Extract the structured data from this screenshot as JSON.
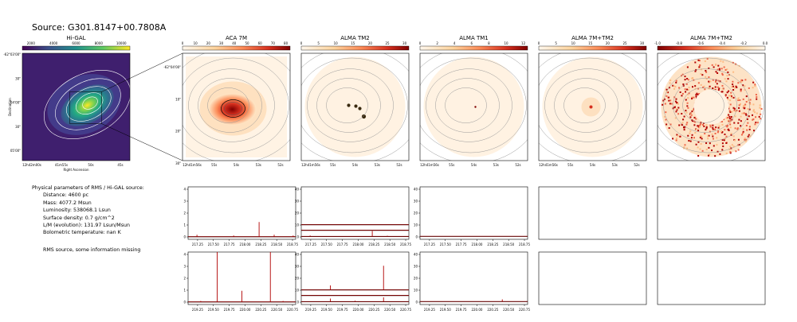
{
  "source_title": "Source: G301.8147+00.7808A",
  "info": {
    "heading": "Physical parameters of RMS / Hi-GAL source:",
    "distance": "Distance: 4600 pc",
    "mass": "Mass: 4077.2 Msun",
    "luminosity": "Luminosity: 538068.1 Lsun",
    "surface_density": "Surface density: 0.7 g/cm^2",
    "lm": "L/M (evolution): 131.97 Lsun/Msun",
    "tbol": "Bolometric temperature: nan K",
    "note": "RMS source, some information missing"
  },
  "chart_data": [
    {
      "type": "heatmap",
      "title": "Hi-GAL",
      "colormap": "viridis",
      "colorbar_ticks": [
        "2000",
        "4000",
        "6000",
        "8000",
        "10000"
      ],
      "xlabel": "Right Ascension",
      "ylabel": "Declination",
      "xticks": [
        "12h42m00s",
        "41m55s",
        "50s",
        "45s"
      ],
      "yticks": [
        "-62°03'00\"",
        "30\"",
        "04'00\"",
        "30\"",
        "05'00\""
      ]
    },
    {
      "type": "heatmap",
      "title": "ACA 7M",
      "colormap": "OrRd",
      "colorbar_ticks": [
        "0",
        "10",
        "20",
        "30",
        "40",
        "50",
        "60",
        "70",
        "80"
      ],
      "xticks": [
        "12h41m56s",
        "55s",
        "54s",
        "53s",
        "52s"
      ],
      "yticks": [
        "-62°04'00\"",
        "10\"",
        "20\"",
        "30\""
      ]
    },
    {
      "type": "heatmap",
      "title": "ALMA TM2",
      "colormap": "OrRd",
      "colorbar_ticks": [
        "0",
        "5",
        "10",
        "15",
        "20",
        "25",
        "30"
      ],
      "xticks": [
        "12h41m56s",
        "55s",
        "54s",
        "53s",
        "52s"
      ]
    },
    {
      "type": "heatmap",
      "title": "ALMA TM1",
      "colormap": "OrRd",
      "colorbar_ticks": [
        "0",
        "2",
        "4",
        "6",
        "8",
        "10",
        "12"
      ],
      "xticks": [
        "12h41m56s",
        "55s",
        "54s",
        "53s",
        "52s"
      ]
    },
    {
      "type": "heatmap",
      "title": "ALMA 7M+TM2",
      "colormap": "OrRd",
      "colorbar_ticks": [
        "0",
        "5",
        "10",
        "15",
        "20",
        "25",
        "30"
      ],
      "xticks": [
        "12h41m56s",
        "55s",
        "54s",
        "53s",
        "52s"
      ]
    },
    {
      "type": "heatmap",
      "title": "ALMA 7M+TM2",
      "colormap": "OrRd",
      "colorbar_ticks": [
        "-1.0",
        "-0.8",
        "-0.6",
        "-0.4",
        "-0.2",
        "0.0"
      ]
    },
    {
      "type": "line",
      "panel": "ACA 7M spectrum, row 1",
      "xlim": [
        217.1,
        218.8
      ],
      "ylim": [
        -0.2,
        4.2
      ],
      "xticks": [
        "217.25",
        "217.50",
        "217.75",
        "218.00",
        "218.25",
        "218.50",
        "218.75"
      ],
      "yticks": [
        "0",
        "1",
        "2",
        "3",
        "4"
      ],
      "series": [
        {
          "baseline": 0.02,
          "lines": [
            [
              218.222,
              1.25
            ],
            [
              217.24,
              0.18
            ],
            [
              217.82,
              0.12
            ],
            [
              218.46,
              0.18
            ],
            [
              218.76,
              0.12
            ]
          ]
        }
      ]
    },
    {
      "type": "line",
      "panel": "ALMA TM2 spectrum, row 1",
      "xlim": [
        217.1,
        218.8
      ],
      "ylim": [
        -2,
        42
      ],
      "xticks": [
        "217.25",
        "217.50",
        "217.75",
        "218.00",
        "218.25",
        "218.50",
        "218.75"
      ],
      "yticks": [
        "0",
        "10",
        "20",
        "30",
        "40"
      ],
      "series": [
        {
          "baseline": 10.3,
          "lines": []
        },
        {
          "baseline": 5.6,
          "lines": []
        },
        {
          "baseline": 0.4,
          "lines": [
            [
              218.222,
              5.0
            ],
            [
              217.24,
              1.2
            ],
            [
              218.46,
              1.0
            ]
          ]
        }
      ]
    },
    {
      "type": "line",
      "panel": "ALMA TM1 spectrum, row 1",
      "xlim": [
        217.1,
        218.8
      ],
      "ylim": [
        -2,
        42
      ],
      "xticks": [
        "217.25",
        "217.50",
        "217.75",
        "218.00",
        "218.25",
        "218.50",
        "218.75"
      ],
      "yticks": [
        "0",
        "10",
        "20",
        "30",
        "40"
      ],
      "series": [
        {
          "baseline": 0.5,
          "lines": []
        }
      ]
    },
    {
      "type": "line",
      "panel": "ACA 7M spectrum, row 2",
      "xlim": [
        219.1,
        220.8
      ],
      "ylim": [
        -0.2,
        4.2
      ],
      "xticks": [
        "219.25",
        "219.50",
        "219.75",
        "220.00",
        "220.25",
        "220.50",
        "220.75"
      ],
      "yticks": [
        "0",
        "1",
        "2",
        "3",
        "4"
      ],
      "series": [
        {
          "baseline": 0.02,
          "lines": [
            [
              219.56,
              4.2
            ],
            [
              219.95,
              0.95
            ],
            [
              220.4,
              4.2
            ],
            [
              219.3,
              0.1
            ],
            [
              220.6,
              0.1
            ]
          ]
        }
      ]
    },
    {
      "type": "line",
      "panel": "ALMA TM2 spectrum, row 2",
      "xlim": [
        219.1,
        220.8
      ],
      "ylim": [
        -2,
        42
      ],
      "xticks": [
        "219.25",
        "219.50",
        "219.75",
        "220.00",
        "220.25",
        "220.50",
        "220.75"
      ],
      "yticks": [
        "0",
        "10",
        "20",
        "30",
        "40"
      ],
      "series": [
        {
          "baseline": 10.3,
          "lines": [
            [
              219.56,
              14.0
            ],
            [
              220.4,
              30.5
            ]
          ]
        },
        {
          "baseline": 5.6,
          "lines": []
        },
        {
          "baseline": 0.4,
          "lines": [
            [
              219.56,
              3.0
            ],
            [
              219.95,
              1.2
            ],
            [
              220.4,
              4.0
            ]
          ]
        }
      ]
    },
    {
      "type": "line",
      "panel": "ALMA TM1 spectrum, row 2",
      "xlim": [
        219.1,
        220.8
      ],
      "ylim": [
        -2,
        42
      ],
      "xticks": [
        "219.25",
        "219.50",
        "219.75",
        "220.00",
        "220.25",
        "220.50",
        "220.75"
      ],
      "yticks": [
        "0",
        "10",
        "20",
        "30",
        "40"
      ],
      "series": [
        {
          "baseline": 0.5,
          "lines": [
            [
              220.4,
              2.3
            ]
          ]
        }
      ]
    },
    {
      "type": "line",
      "panel": "ALMA 7M+TM2 spectrum, row 1",
      "series": []
    },
    {
      "type": "line",
      "panel": "ALMA 7M+TM2 spectrum, row 1 (second)",
      "series": []
    },
    {
      "type": "line",
      "panel": "ALMA 7M+TM2 spectrum, row 2",
      "series": []
    },
    {
      "type": "line",
      "panel": "ALMA 7M+TM2 spectrum, row 2 (second)",
      "series": []
    }
  ]
}
